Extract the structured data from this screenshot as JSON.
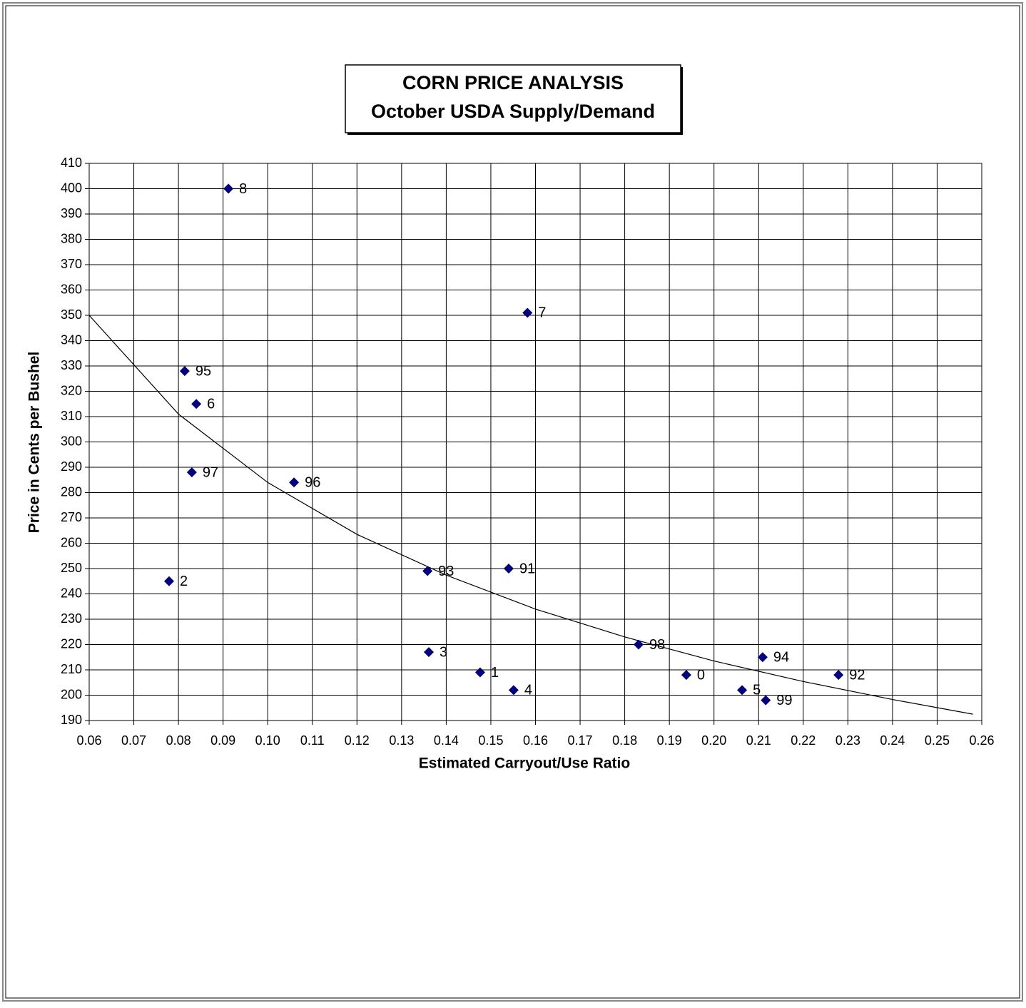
{
  "chart_data": {
    "type": "scatter",
    "title": "CORN PRICE ANALYSIS",
    "subtitle": "October USDA Supply/Demand",
    "x_label": "Estimated Carryout/Use Ratio",
    "y_label": "Price in Cents per Bushel",
    "xlim": [
      0.06,
      0.26
    ],
    "ylim": [
      190,
      410
    ],
    "xticks": [
      0.06,
      0.07,
      0.08,
      0.09,
      {
        "value": 0.1,
        "label": "0.10"
      },
      0.11,
      0.12,
      0.13,
      0.14,
      0.15,
      0.16,
      0.17,
      0.18,
      0.19,
      {
        "value": 0.2,
        "label": "0.20"
      },
      0.21,
      0.22,
      0.23,
      0.24,
      0.25,
      0.26
    ],
    "yticks": [
      190,
      200,
      210,
      220,
      230,
      240,
      250,
      260,
      270,
      280,
      290,
      300,
      310,
      320,
      330,
      340,
      350,
      360,
      370,
      380,
      390,
      400,
      410
    ],
    "grid": true,
    "series": [
      {
        "color": "#000080",
        "x": [
          0.0912,
          0.1582,
          0.0814,
          0.084,
          0.083,
          0.1059,
          0.0779,
          0.1358,
          0.154,
          0.1361,
          0.1476,
          0.1551,
          0.1831,
          0.1938,
          0.2063,
          0.2109,
          0.2116,
          0.2279
        ],
        "values": [
          400,
          351,
          328,
          315,
          288,
          284,
          245,
          249,
          250,
          217,
          209,
          202,
          220,
          208,
          202,
          215,
          198,
          208
        ],
        "labels": [
          "8",
          "7",
          "95",
          "6",
          "97",
          "96",
          "2",
          "93",
          "91",
          "3",
          "1",
          "4",
          "98",
          "0",
          "5",
          "94",
          "99",
          "92"
        ]
      }
    ],
    "trendline": {
      "color": "#000000",
      "x": [
        0.06,
        0.08,
        0.1,
        0.12,
        0.14,
        0.16,
        0.18,
        0.2,
        0.22,
        0.24,
        0.258
      ],
      "values": [
        350,
        311,
        284,
        263.5,
        247.4,
        234,
        223,
        213.5,
        205.4,
        198.3,
        192.5
      ]
    }
  }
}
